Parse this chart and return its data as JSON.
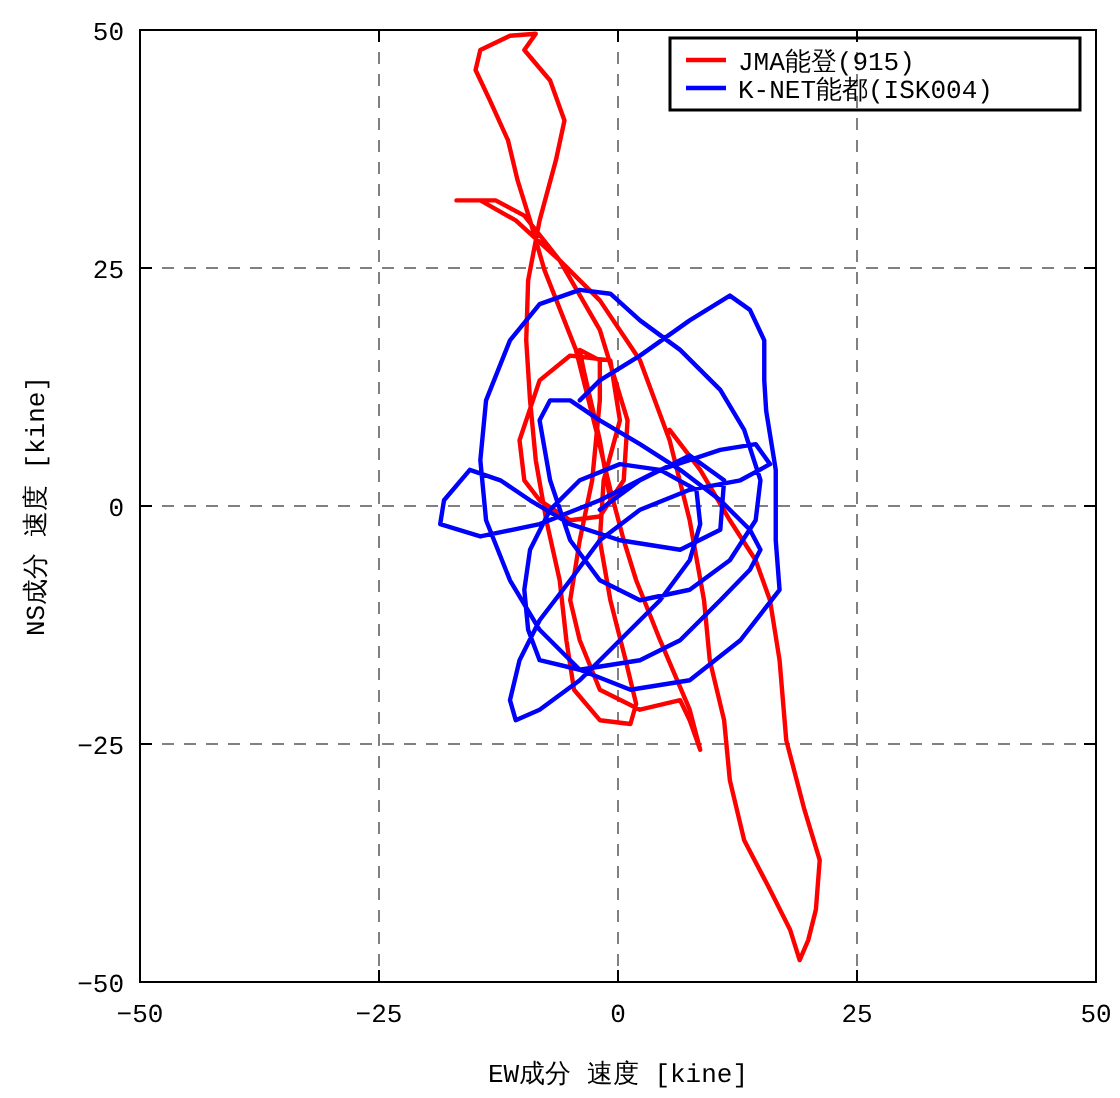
{
  "chart_data": {
    "type": "line",
    "xlabel": "EW成分 速度 [kine]",
    "ylabel": "NS成分 速度 [kine]",
    "xlim": [
      -50,
      50
    ],
    "ylim": [
      -50,
      50
    ],
    "xticks": [
      -50,
      -25,
      0,
      25,
      50
    ],
    "yticks": [
      -50,
      -25,
      0,
      25,
      50
    ],
    "grid": true,
    "legend": "top right",
    "series": [
      {
        "name": "JMA能登(915)",
        "color": "#ff0000",
        "x": [
          -0.8,
          -1.9,
          -3.6,
          -4,
          -1.9,
          -1.9,
          -2.7,
          -4,
          -5,
          -4,
          -1.9,
          2.3,
          6.5,
          7.5,
          8.6,
          7.5,
          4.4,
          1.9,
          0.6,
          -0.8,
          -2.3,
          -4.4,
          -7.7,
          -9.2,
          -10.5,
          -11.5,
          -13.4,
          -14.9,
          -14.4,
          -11.3,
          -8.6,
          -9.8,
          -7.1,
          -5.6,
          -6.5,
          -8.2,
          -9.4,
          -9.6,
          -9.2,
          -8.6,
          -7.5,
          -6.1,
          -5.4,
          -4.6,
          -1.9,
          1.3,
          1.9,
          0.8,
          -0.8,
          -1.9,
          -1.5,
          0.2,
          -0.8,
          -5,
          -8.2,
          -10.3,
          -9.8,
          -8.2,
          -5,
          -1.9,
          0.6,
          1,
          -1.9,
          -6.1,
          -9.8,
          -12.8,
          -16.9,
          -14.4,
          -10.7,
          -6.1,
          -1.9,
          2.3,
          5.4,
          7.5,
          9,
          9.6,
          11.1,
          11.7,
          13.2,
          15.9,
          18,
          19,
          19.9,
          20.7,
          21.1,
          19.5,
          17.6,
          16.9,
          15.9,
          14.4,
          11.7,
          8.6,
          5.4
        ],
        "values": [
          0.6,
          6.9,
          14.3,
          16.4,
          15.3,
          11.1,
          2.7,
          -3.6,
          -9.9,
          -14.1,
          -19.3,
          -21.4,
          -20.4,
          -22.5,
          -25.6,
          -21.4,
          -14.1,
          -7.8,
          -3.6,
          1.7,
          8,
          16.4,
          24.8,
          30,
          34.2,
          38.4,
          42.6,
          45.8,
          47.9,
          49.4,
          49.6,
          47.9,
          44.7,
          40.5,
          36.3,
          30,
          23.7,
          17.4,
          11.1,
          4.8,
          -1.5,
          -7.8,
          -14.1,
          -19.3,
          -22.5,
          -22.9,
          -20.8,
          -16.2,
          -9.9,
          -3.6,
          2.7,
          9,
          15.3,
          15.8,
          13.2,
          6.9,
          2.7,
          0.6,
          -1.5,
          -1.1,
          2.7,
          9,
          18.5,
          25.8,
          30.5,
          32.1,
          32.1,
          32.1,
          30,
          25.8,
          21.6,
          15.3,
          6.9,
          -1.5,
          -9.9,
          -16.2,
          -22.5,
          -28.8,
          -35.1,
          -40.3,
          -44.5,
          -47.7,
          -45.6,
          -42.4,
          -37.2,
          -31.9,
          -24.6,
          -16.2,
          -9.9,
          -5.7,
          -1.5,
          3.8,
          8
        ]
      },
      {
        "name": "K-NET能都(ISK004)",
        "color": "#0000ff",
        "x": [
          -1.9,
          2.3,
          7.5,
          11.1,
          10.7,
          6.5,
          0.2,
          -5,
          -9.2,
          -12.3,
          -15.5,
          -18.2,
          -18.6,
          -14.4,
          -8.2,
          -1.9,
          4.4,
          10.7,
          14.4,
          15.9,
          12.8,
          7.5,
          2.3,
          -1.9,
          -5,
          -8.2,
          -10.3,
          -11.3,
          -10.7,
          -8.2,
          -4,
          0.2,
          4.4,
          7.5,
          8.6,
          8.2,
          4.4,
          0.2,
          -4,
          -7.1,
          -9.2,
          -9.8,
          -9.4,
          -8.2,
          -4,
          2.3,
          6.5,
          10.7,
          13.8,
          14.9,
          13.8,
          10.7,
          6.5,
          2.3,
          -1.9,
          -5,
          -7.1,
          -8.2,
          -7.1,
          -5,
          -1.9,
          2.3,
          7.5,
          11.7,
          14.4,
          14.9,
          13.2,
          10.7,
          6.5,
          2.3,
          -0.8,
          -4,
          -8.2,
          -11.3,
          -13.8,
          -14.4,
          -13.8,
          -11.3,
          -8.2,
          -4,
          1.3,
          7.5,
          12.8,
          16.9,
          16.5,
          16.5,
          15.5,
          15.3,
          15.3,
          13.8,
          11.7,
          7.5,
          2.3,
          -1.9,
          -4
        ],
        "values": [
          -0.4,
          2.7,
          5.3,
          2.7,
          -2.5,
          -4.6,
          -3.6,
          -1.9,
          0.6,
          2.7,
          3.8,
          0.6,
          -1.9,
          -3.2,
          -1.9,
          0.6,
          3.8,
          5.9,
          6.5,
          4.4,
          2.7,
          1.7,
          -0.4,
          -3.6,
          -7.8,
          -12,
          -16.2,
          -20.4,
          -22.5,
          -21.4,
          -18.3,
          -14.1,
          -9.9,
          -5.7,
          -1.9,
          1.7,
          3.8,
          4.4,
          2.7,
          -0.4,
          -4.6,
          -8.8,
          -13,
          -16.2,
          -17.2,
          -16.2,
          -14.1,
          -9.9,
          -6.7,
          -4.6,
          -2.5,
          0.6,
          3.8,
          6.5,
          9,
          11.1,
          11.1,
          9,
          2.7,
          -3.6,
          -7.8,
          -9.9,
          -8.8,
          -5.7,
          -1.5,
          2.7,
          8,
          12.2,
          16.4,
          19.5,
          22.3,
          22.7,
          21.2,
          17.4,
          11.1,
          4.8,
          -1.5,
          -7.8,
          -13,
          -17.2,
          -19.3,
          -18.3,
          -14.1,
          -8.8,
          -3.6,
          3.8,
          10,
          13.2,
          17.4,
          20.6,
          22.1,
          19.5,
          15.8,
          13.2,
          11.1
        ]
      }
    ]
  }
}
